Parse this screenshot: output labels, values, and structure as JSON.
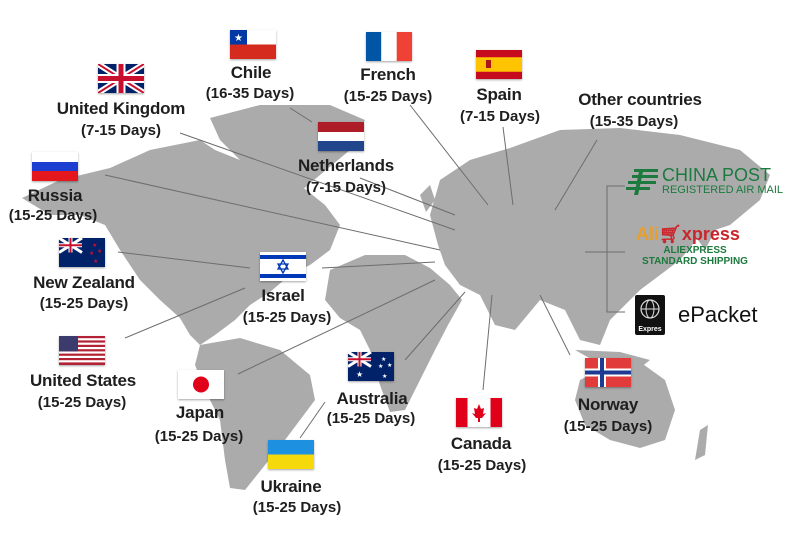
{
  "destinations": [
    {
      "country": "Chile",
      "days": "(16-35 Days)",
      "flag": "chile-flag"
    },
    {
      "country": "French",
      "days": "(15-25 Days)",
      "flag": "france-flag"
    },
    {
      "country": "Spain",
      "days": "(7-15 Days)",
      "flag": "spain-flag"
    },
    {
      "country": "Other countries",
      "days": "(15-35 Days)"
    },
    {
      "country": "United Kingdom",
      "days": "(7-15 Days)",
      "flag": "uk-flag"
    },
    {
      "country": "Netherlands",
      "days": "(7-15 Days)",
      "flag": "netherlands-flag"
    },
    {
      "country": "Russia",
      "days": "(15-25 Days)",
      "flag": "russia-flag"
    },
    {
      "country": "New Zealand",
      "days": "(15-25 Days)",
      "flag": "new-zealand-flag"
    },
    {
      "country": "Israel",
      "days": "(15-25 Days)",
      "flag": "israel-flag"
    },
    {
      "country": "United States",
      "days": "(15-25 Days)",
      "flag": "usa-flag"
    },
    {
      "country": "Japan",
      "days": "(15-25 Days)",
      "flag": "japan-flag"
    },
    {
      "country": "Australia",
      "days": "(15-25 Days)",
      "flag": "australia-flag"
    },
    {
      "country": "Canada",
      "days": "(15-25 Days)",
      "flag": "canada-flag"
    },
    {
      "country": "Norway",
      "days": "(15-25 Days)",
      "flag": "norway-flag"
    },
    {
      "country": "Ukraine",
      "days": "(15-25 Days)",
      "flag": "ukraine-flag"
    }
  ],
  "shipping": {
    "china_post": {
      "title": "CHINA POST",
      "subtitle": "REGISTERED AIR MAIL"
    },
    "aliexpress": {
      "logo_a": "Ali",
      "logo_b": "xpress",
      "line1": "ALIEXPRESS",
      "line2": "STANDARD SHIPPING"
    },
    "epacket": {
      "title": "ePacket",
      "badge": "Expres"
    }
  },
  "colors": {
    "land": "#ababab",
    "text": "#1e1e1e",
    "china_post_green": "#1c7a3e",
    "ali_orange": "#e8a02a",
    "ali_red": "#c9262c"
  }
}
